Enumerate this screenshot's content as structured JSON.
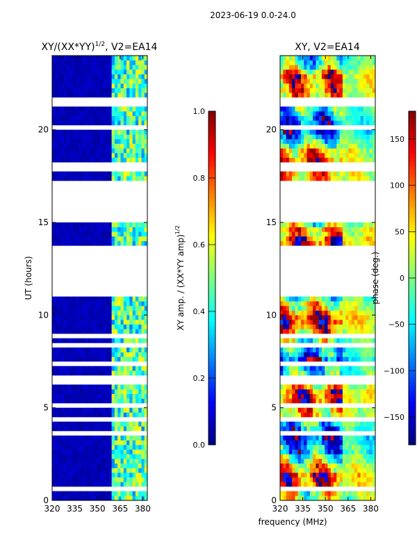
{
  "suptitle": "2023-06-19 0.0-24.0",
  "colors": {
    "jet": [
      "#00007f",
      "#0000ff",
      "#007fff",
      "#00ffff",
      "#7fff7f",
      "#ffff00",
      "#ff7f00",
      "#ff0000",
      "#7f0000"
    ],
    "gap": "#ffffff",
    "axis": "#000000"
  },
  "chart_data": [
    {
      "type": "heatmap",
      "title": "XY/(XX*YY)^1/2, V2=EA14",
      "title_main": "XY/(XX*YY)",
      "title_exp": "1/2",
      "title_tail": ", V2=EA14",
      "xlabel": "",
      "ylabel": "UT (hours)",
      "xlim": [
        320,
        383
      ],
      "ylim": [
        0,
        24
      ],
      "xticks": [
        "320",
        "335",
        "350",
        "365",
        "380"
      ],
      "yticks": [
        "0",
        "5",
        "10",
        "15",
        "20"
      ],
      "colorbar": {
        "label": "XY amp. / (XX*YY amp)^1/2",
        "label_main": "XY amp. / (XX*YY amp)",
        "label_exp": "1/2",
        "range": [
          0.0,
          1.0
        ],
        "ticks": [
          "0.0",
          "0.2",
          "0.4",
          "0.6",
          "0.8",
          "1.0"
        ]
      },
      "data_gaps_hours": [
        [
          11.1,
          13.7
        ],
        [
          15.1,
          17.0
        ]
      ],
      "low_band_MHz": [
        320,
        360
      ],
      "high_band_MHz": [
        360,
        383
      ],
      "low_band_level": 0.03,
      "high_band_level": 0.45
    },
    {
      "type": "heatmap",
      "title": "XY, V2=EA14",
      "xlabel": "frequency (MHz)",
      "ylabel": "",
      "xlim": [
        320,
        383
      ],
      "ylim": [
        0,
        24
      ],
      "xticks": [
        "320",
        "335",
        "350",
        "365",
        "380"
      ],
      "yticks": [
        "0",
        "5",
        "10",
        "15",
        "20"
      ],
      "colorbar": {
        "label": "phase (deg.)",
        "range": [
          -180,
          180
        ],
        "ticks": [
          "−150",
          "−100",
          "−50",
          "0",
          "50",
          "100",
          "150"
        ]
      },
      "data_gaps_hours": [
        [
          11.1,
          13.7
        ],
        [
          15.1,
          17.0
        ]
      ],
      "phase_range_deg": [
        -180,
        180
      ]
    }
  ]
}
